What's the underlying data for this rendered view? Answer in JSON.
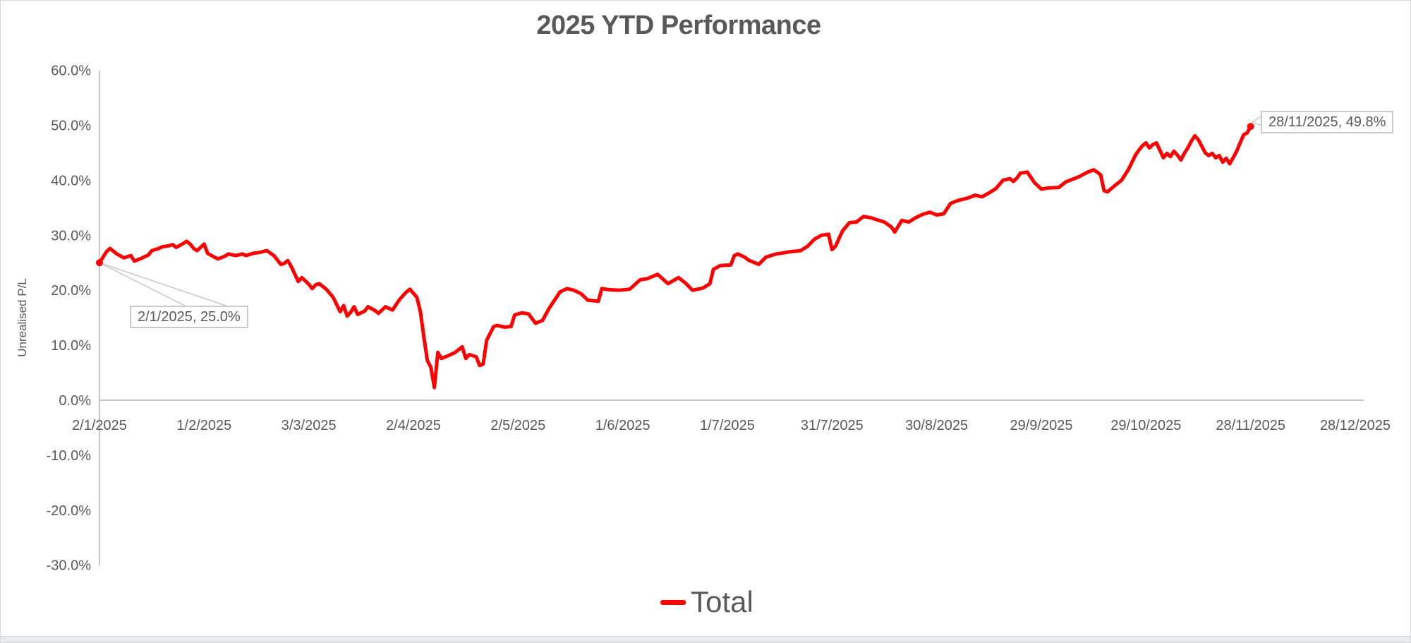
{
  "chart_data": {
    "type": "line",
    "title": "2025 YTD Performance",
    "xlabel": "",
    "ylabel": "Unrealised P/L",
    "grid": false,
    "legend_position": "bottom",
    "ylim": [
      -30,
      60
    ],
    "y_tick_labels": [
      "60.0%",
      "50.0%",
      "40.0%",
      "30.0%",
      "20.0%",
      "10.0%",
      "0.0%",
      "-10.0%",
      "-20.0%",
      "-30.0%"
    ],
    "y_tick_values": [
      60,
      50,
      40,
      30,
      20,
      10,
      0,
      -10,
      -20,
      -30
    ],
    "x_tick_labels": [
      "2/1/2025",
      "1/2/2025",
      "3/3/2025",
      "2/4/2025",
      "2/5/2025",
      "1/6/2025",
      "1/7/2025",
      "31/7/2025",
      "30/8/2025",
      "29/9/2025",
      "29/10/2025",
      "28/11/2025",
      "28/12/2025"
    ],
    "annotations": [
      {
        "text": "2/1/2025, 25.0%",
        "date": "2/1/2025",
        "value": 25.0
      },
      {
        "text": "28/11/2025, 49.8%",
        "date": "28/11/2025",
        "value": 49.8
      }
    ],
    "series": [
      {
        "name": "Total",
        "color": "#ff0000",
        "points": [
          [
            "2/1/2025",
            25.0
          ],
          [
            "4/1/2025",
            27.0
          ],
          [
            "5/1/2025",
            27.6
          ],
          [
            "7/1/2025",
            26.6
          ],
          [
            "9/1/2025",
            25.9
          ],
          [
            "11/1/2025",
            26.3
          ],
          [
            "12/1/2025",
            25.3
          ],
          [
            "14/1/2025",
            25.8
          ],
          [
            "16/1/2025",
            26.4
          ],
          [
            "17/1/2025",
            27.2
          ],
          [
            "19/1/2025",
            27.6
          ],
          [
            "20/1/2025",
            27.9
          ],
          [
            "22/1/2025",
            28.1
          ],
          [
            "23/1/2025",
            28.3
          ],
          [
            "24/1/2025",
            27.8
          ],
          [
            "26/1/2025",
            28.5
          ],
          [
            "27/1/2025",
            28.9
          ],
          [
            "28/1/2025",
            28.4
          ],
          [
            "29/1/2025",
            27.6
          ],
          [
            "30/1/2025",
            27.2
          ],
          [
            "1/2/2025",
            28.4
          ],
          [
            "2/2/2025",
            26.7
          ],
          [
            "4/2/2025",
            26.0
          ],
          [
            "5/2/2025",
            25.7
          ],
          [
            "7/2/2025",
            26.2
          ],
          [
            "8/2/2025",
            26.6
          ],
          [
            "10/2/2025",
            26.3
          ],
          [
            "12/2/2025",
            26.6
          ],
          [
            "13/2/2025",
            26.3
          ],
          [
            "15/2/2025",
            26.7
          ],
          [
            "17/2/2025",
            26.9
          ],
          [
            "19/2/2025",
            27.2
          ],
          [
            "21/2/2025",
            26.3
          ],
          [
            "23/2/2025",
            24.7
          ],
          [
            "24/2/2025",
            24.9
          ],
          [
            "25/2/2025",
            25.4
          ],
          [
            "26/2/2025",
            24.3
          ],
          [
            "28/2/2025",
            21.6
          ],
          [
            "1/3/2025",
            22.3
          ],
          [
            "3/3/2025",
            21.1
          ],
          [
            "4/3/2025",
            20.3
          ],
          [
            "5/3/2025",
            21.0
          ],
          [
            "6/3/2025",
            21.2
          ],
          [
            "8/3/2025",
            20.2
          ],
          [
            "10/3/2025",
            18.7
          ],
          [
            "12/3/2025",
            16.1
          ],
          [
            "13/3/2025",
            17.2
          ],
          [
            "14/3/2025",
            15.3
          ],
          [
            "15/3/2025",
            16.0
          ],
          [
            "16/3/2025",
            17.0
          ],
          [
            "17/3/2025",
            15.6
          ],
          [
            "19/3/2025",
            16.2
          ],
          [
            "20/3/2025",
            17.0
          ],
          [
            "22/3/2025",
            16.3
          ],
          [
            "23/3/2025",
            15.8
          ],
          [
            "25/3/2025",
            17.0
          ],
          [
            "27/3/2025",
            16.4
          ],
          [
            "29/3/2025",
            18.3
          ],
          [
            "31/3/2025",
            19.7
          ],
          [
            "1/4/2025",
            20.2
          ],
          [
            "3/4/2025",
            18.7
          ],
          [
            "4/4/2025",
            16.1
          ],
          [
            "5/4/2025",
            11.5
          ],
          [
            "6/4/2025",
            7.2
          ],
          [
            "7/4/2025",
            6.0
          ],
          [
            "8/4/2025",
            2.3
          ],
          [
            "9/4/2025",
            8.7
          ],
          [
            "10/4/2025",
            7.6
          ],
          [
            "12/4/2025",
            8.1
          ],
          [
            "14/4/2025",
            8.7
          ],
          [
            "16/4/2025",
            9.7
          ],
          [
            "17/4/2025",
            7.6
          ],
          [
            "18/4/2025",
            8.3
          ],
          [
            "20/4/2025",
            7.9
          ],
          [
            "21/4/2025",
            6.3
          ],
          [
            "22/4/2025",
            6.6
          ],
          [
            "23/4/2025",
            10.9
          ],
          [
            "25/4/2025",
            13.4
          ],
          [
            "26/4/2025",
            13.6
          ],
          [
            "28/4/2025",
            13.3
          ],
          [
            "30/4/2025",
            13.4
          ],
          [
            "1/5/2025",
            15.5
          ],
          [
            "3/5/2025",
            15.9
          ],
          [
            "5/5/2025",
            15.7
          ],
          [
            "7/5/2025",
            14.0
          ],
          [
            "9/5/2025",
            14.5
          ],
          [
            "11/5/2025",
            16.8
          ],
          [
            "13/5/2025",
            18.7
          ],
          [
            "14/5/2025",
            19.7
          ],
          [
            "16/5/2025",
            20.3
          ],
          [
            "18/5/2025",
            20.0
          ],
          [
            "20/5/2025",
            19.4
          ],
          [
            "22/5/2025",
            18.2
          ],
          [
            "25/5/2025",
            18.0
          ],
          [
            "26/5/2025",
            20.3
          ],
          [
            "28/5/2025",
            20.1
          ],
          [
            "31/5/2025",
            20.0
          ],
          [
            "3/6/2025",
            20.2
          ],
          [
            "6/6/2025",
            21.9
          ],
          [
            "8/6/2025",
            22.1
          ],
          [
            "11/6/2025",
            22.9
          ],
          [
            "14/6/2025",
            21.2
          ],
          [
            "17/6/2025",
            22.3
          ],
          [
            "19/6/2025",
            21.3
          ],
          [
            "21/6/2025",
            20.0
          ],
          [
            "24/6/2025",
            20.4
          ],
          [
            "26/6/2025",
            21.2
          ],
          [
            "27/6/2025",
            23.8
          ],
          [
            "29/6/2025",
            24.5
          ],
          [
            "2/7/2025",
            24.6
          ],
          [
            "3/7/2025",
            26.3
          ],
          [
            "4/7/2025",
            26.6
          ],
          [
            "6/7/2025",
            26.0
          ],
          [
            "7/7/2025",
            25.5
          ],
          [
            "10/7/2025",
            24.7
          ],
          [
            "12/7/2025",
            26.0
          ],
          [
            "15/7/2025",
            26.6
          ],
          [
            "17/7/2025",
            26.8
          ],
          [
            "19/7/2025",
            27.0
          ],
          [
            "22/7/2025",
            27.2
          ],
          [
            "24/7/2025",
            28.0
          ],
          [
            "26/7/2025",
            29.3
          ],
          [
            "28/7/2025",
            30.0
          ],
          [
            "30/7/2025",
            30.2
          ],
          [
            "31/7/2025",
            27.4
          ],
          [
            "1/8/2025",
            28.0
          ],
          [
            "2/8/2025",
            29.4
          ],
          [
            "3/8/2025",
            30.8
          ],
          [
            "5/8/2025",
            32.3
          ],
          [
            "7/8/2025",
            32.4
          ],
          [
            "9/8/2025",
            33.4
          ],
          [
            "11/8/2025",
            33.2
          ],
          [
            "13/8/2025",
            32.8
          ],
          [
            "15/8/2025",
            32.4
          ],
          [
            "17/8/2025",
            31.5
          ],
          [
            "18/8/2025",
            30.6
          ],
          [
            "20/8/2025",
            32.7
          ],
          [
            "22/8/2025",
            32.4
          ],
          [
            "24/8/2025",
            33.2
          ],
          [
            "26/8/2025",
            33.8
          ],
          [
            "28/8/2025",
            34.2
          ],
          [
            "30/8/2025",
            33.7
          ],
          [
            "1/9/2025",
            33.9
          ],
          [
            "3/9/2025",
            35.8
          ],
          [
            "5/9/2025",
            36.3
          ],
          [
            "8/9/2025",
            36.8
          ],
          [
            "10/9/2025",
            37.3
          ],
          [
            "12/9/2025",
            37.0
          ],
          [
            "14/9/2025",
            37.7
          ],
          [
            "16/9/2025",
            38.5
          ],
          [
            "18/9/2025",
            40.0
          ],
          [
            "20/9/2025",
            40.3
          ],
          [
            "21/9/2025",
            39.8
          ],
          [
            "22/9/2025",
            40.4
          ],
          [
            "23/9/2025",
            41.3
          ],
          [
            "25/9/2025",
            41.5
          ],
          [
            "27/9/2025",
            39.6
          ],
          [
            "29/9/2025",
            38.4
          ],
          [
            "1/10/2025",
            38.6
          ],
          [
            "4/10/2025",
            38.7
          ],
          [
            "6/10/2025",
            39.7
          ],
          [
            "8/10/2025",
            40.2
          ],
          [
            "10/10/2025",
            40.7
          ],
          [
            "12/10/2025",
            41.4
          ],
          [
            "14/10/2025",
            41.9
          ],
          [
            "15/10/2025",
            41.5
          ],
          [
            "16/10/2025",
            41.0
          ],
          [
            "17/10/2025",
            38.1
          ],
          [
            "18/10/2025",
            37.9
          ],
          [
            "20/10/2025",
            39.0
          ],
          [
            "22/10/2025",
            40.0
          ],
          [
            "24/10/2025",
            42.0
          ],
          [
            "26/10/2025",
            44.6
          ],
          [
            "27/10/2025",
            45.5
          ],
          [
            "28/10/2025",
            46.3
          ],
          [
            "29/10/2025",
            46.8
          ],
          [
            "30/10/2025",
            45.9
          ],
          [
            "31/10/2025",
            46.5
          ],
          [
            "1/11/2025",
            46.8
          ],
          [
            "3/11/2025",
            44.1
          ],
          [
            "4/11/2025",
            44.9
          ],
          [
            "5/11/2025",
            44.3
          ],
          [
            "6/11/2025",
            45.3
          ],
          [
            "7/11/2025",
            44.6
          ],
          [
            "8/11/2025",
            43.7
          ],
          [
            "9/11/2025",
            44.9
          ],
          [
            "10/11/2025",
            45.9
          ],
          [
            "11/11/2025",
            47.1
          ],
          [
            "12/11/2025",
            48.1
          ],
          [
            "13/11/2025",
            47.4
          ],
          [
            "14/11/2025",
            46.2
          ],
          [
            "15/11/2025",
            45.0
          ],
          [
            "16/11/2025",
            44.5
          ],
          [
            "17/11/2025",
            44.9
          ],
          [
            "18/11/2025",
            44.1
          ],
          [
            "19/11/2025",
            44.5
          ],
          [
            "20/11/2025",
            43.3
          ],
          [
            "21/11/2025",
            44.0
          ],
          [
            "22/11/2025",
            43.0
          ],
          [
            "23/11/2025",
            44.1
          ],
          [
            "24/11/2025",
            45.3
          ],
          [
            "25/11/2025",
            46.8
          ],
          [
            "26/11/2025",
            48.3
          ],
          [
            "27/11/2025",
            48.6
          ],
          [
            "28/11/2025",
            49.8
          ]
        ]
      }
    ]
  }
}
